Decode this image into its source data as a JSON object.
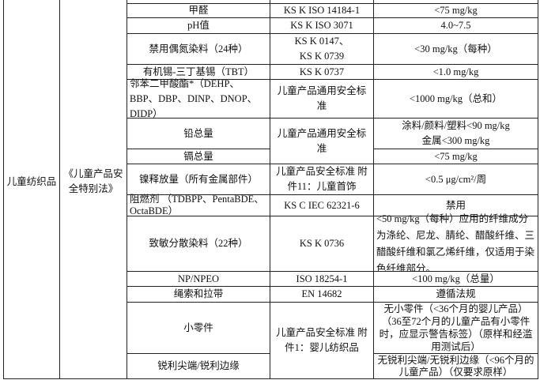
{
  "table": {
    "category": "儿童纺织品",
    "law": "《儿童产品安全特别法》",
    "rows": [
      {
        "item": "甲醛",
        "standard": "KS K ISO 14184-1",
        "limit": "<75 mg/kg"
      },
      {
        "item": "pH值",
        "standard": "KS K ISO 3071",
        "limit": "4.0~7.5"
      },
      {
        "item": "禁用偶氮染料（24种）",
        "standard_lines": [
          "KS K 0147、",
          "KS K 0739"
        ],
        "limit": "<30 mg/kg（每种）"
      },
      {
        "item": "有机锡-三丁基锡（TBT）",
        "standard": "KS K 0737",
        "limit": "<1.0 mg/kg"
      },
      {
        "item": "邻苯二甲酸酯*（DEHP、BBP、DBP、DINP、DNOP、DIDP）",
        "standard": "儿童产品通用安全标准",
        "limit": "<1000 mg/kg（总和）"
      },
      {
        "item": "铅总量",
        "standard": "儿童产品通用安全标准",
        "limit_lines": [
          "涂料/颜料/塑料<90 mg/kg",
          "金属<300 mg/kg"
        ]
      },
      {
        "item": "镉总量",
        "limit": "<75 mg/kg"
      },
      {
        "item": "镍释放量（所有金属部件）",
        "standard": "儿童产品安全标准 附件11：儿童首饰",
        "limit": "<0.5 μg/cm²/周"
      },
      {
        "item": "阻燃剂 （TDBPP、PentaBDE、OctaBDE）",
        "standard": "KS C IEC 62321-6",
        "limit": "禁用"
      },
      {
        "item": "致敏分散染料（22种）",
        "standard": "KS K 0736",
        "limit": "<50 mg/kg（每种）应用的纤维成分为涤纶、尼龙、腈纶、醋酸纤维、三醋酸纤维和氯乙烯纤维，仅适用于染色纤维部分。"
      },
      {
        "item": "NP/NPEO",
        "standard": "ISO 18254-1",
        "limit": "<100 mg/kg（总量）"
      },
      {
        "item": "绳索和拉带",
        "standard": "EN 14682",
        "limit": "遵循法规"
      },
      {
        "item": "小零件",
        "standard": "儿童产品安全标准 附件1：婴儿纺织品",
        "limit_lines": [
          "无小零件（<36个月的婴儿产品）",
          "（36至72个月的儿童产品有小零件时，应显示警告标签）（原样和经滥用测试后）"
        ]
      },
      {
        "item": "锐利尖端/锐利边缘",
        "limit": "无锐利尖端/无锐利边缘（<96个月的儿童产品）（仅要求原样）"
      }
    ]
  }
}
